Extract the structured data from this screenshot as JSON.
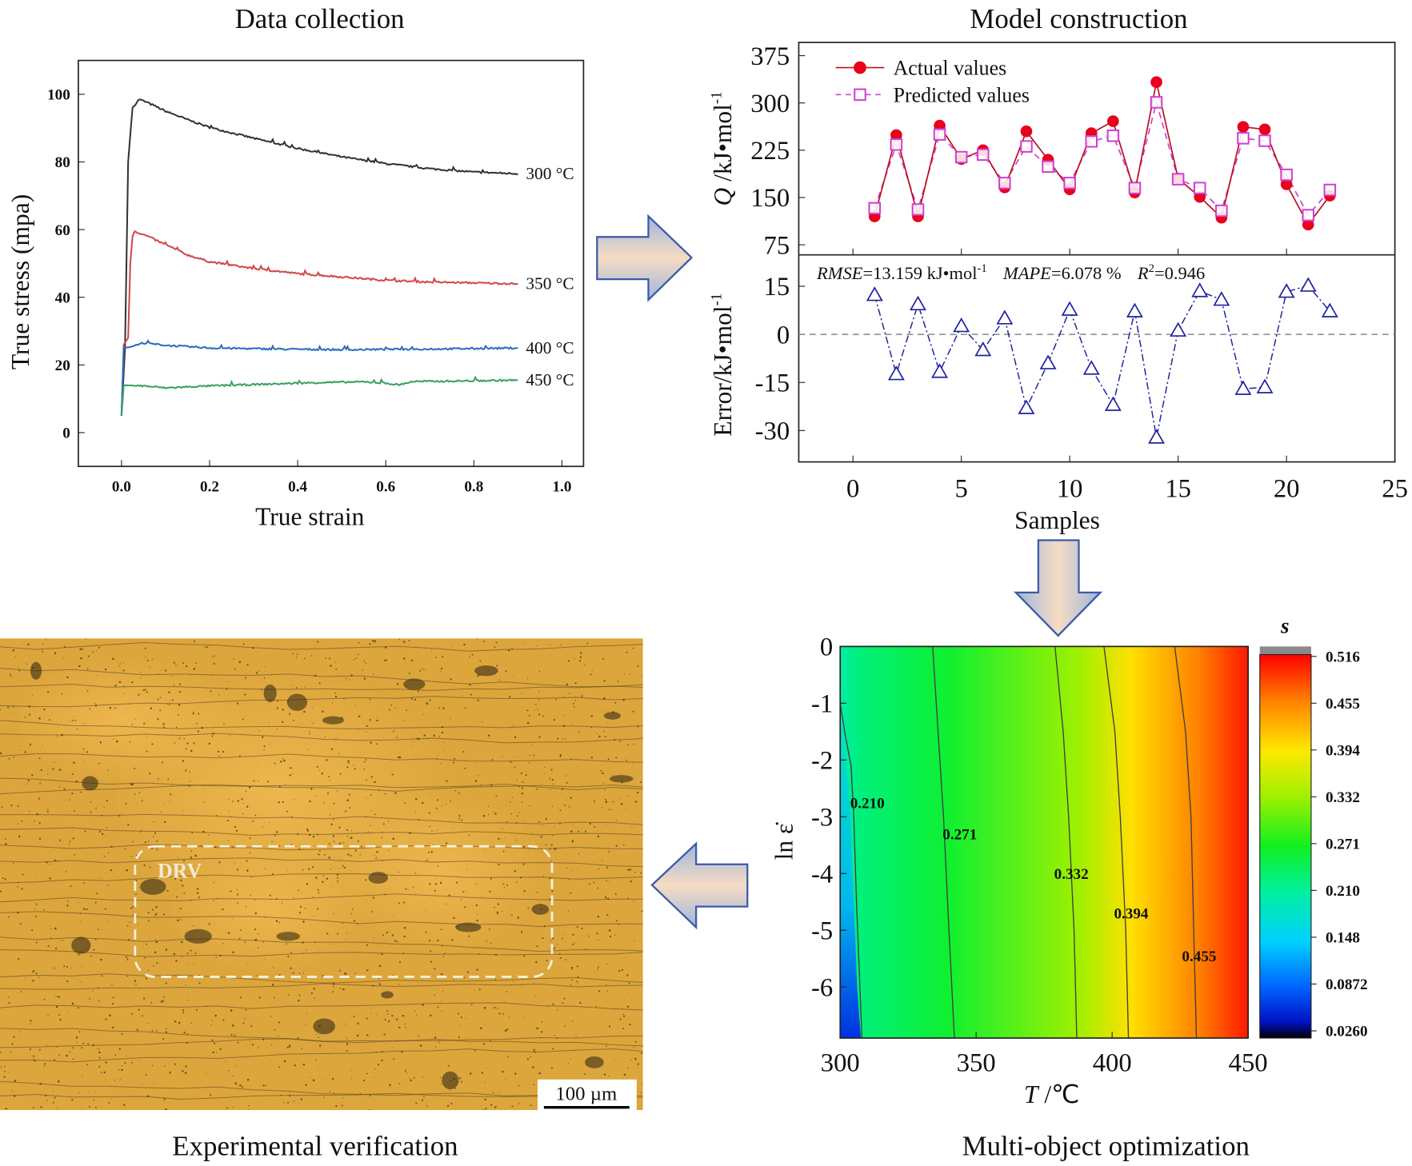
{
  "titles": {
    "data_collection": "Data collection",
    "model_construction": "Model construction",
    "experimental_verification": "Experimental verification",
    "multi_object_optimization": "Multi-object optimization"
  },
  "colors": {
    "arrow_stroke": "#3a5aa8",
    "actual": "#e8001c",
    "predicted": "#d040d0",
    "error": "#2020a0"
  },
  "chart_data": [
    {
      "id": "stress_strain",
      "type": "line",
      "xlabel": "True strain",
      "ylabel": "True stress (mpa)",
      "xlim": [
        -0.098,
        1.049
      ],
      "ylim": [
        -10,
        110
      ],
      "xticks": [
        "0.0",
        "0.2",
        "0.4",
        "0.6",
        "0.8",
        "1.0"
      ],
      "xtick_values": [
        0,
        0.2,
        0.4,
        0.6,
        0.8,
        1.0
      ],
      "yticks": [
        "0",
        "20",
        "40",
        "60",
        "80",
        "100"
      ],
      "ytick_values": [
        0,
        20,
        40,
        60,
        80,
        100
      ],
      "series": [
        {
          "name": "300 °C",
          "color": "#333333",
          "points": [
            [
              0,
              5
            ],
            [
              0.008,
              25
            ],
            [
              0.015,
              80
            ],
            [
              0.025,
              96
            ],
            [
              0.04,
              98.5
            ],
            [
              0.06,
              97.5
            ],
            [
              0.1,
              95
            ],
            [
              0.15,
              92.5
            ],
            [
              0.2,
              90.2
            ],
            [
              0.3,
              87
            ],
            [
              0.4,
              84
            ],
            [
              0.5,
              81.5
            ],
            [
              0.6,
              79.5
            ],
            [
              0.7,
              78
            ],
            [
              0.8,
              77
            ],
            [
              0.9,
              76.5
            ]
          ]
        },
        {
          "name": "350 °C",
          "color": "#d04848",
          "points": [
            [
              0,
              5
            ],
            [
              0.005,
              26
            ],
            [
              0.015,
              28
            ],
            [
              0.02,
              50
            ],
            [
              0.025,
              58
            ],
            [
              0.03,
              59.5
            ],
            [
              0.06,
              58
            ],
            [
              0.1,
              55.5
            ],
            [
              0.15,
              52.5
            ],
            [
              0.2,
              50.5
            ],
            [
              0.3,
              48.5
            ],
            [
              0.4,
              47
            ],
            [
              0.5,
              46
            ],
            [
              0.6,
              45
            ],
            [
              0.7,
              44.5
            ],
            [
              0.9,
              44
            ]
          ]
        },
        {
          "name": "400 °C",
          "color": "#2a6cc0",
          "points": [
            [
              0,
              5
            ],
            [
              0.005,
              25
            ],
            [
              0.02,
              25.3
            ],
            [
              0.05,
              26.5
            ],
            [
              0.1,
              25.8
            ],
            [
              0.2,
              25
            ],
            [
              0.35,
              24.7
            ],
            [
              0.5,
              24.5
            ],
            [
              0.7,
              24.7
            ],
            [
              0.9,
              25
            ]
          ]
        },
        {
          "name": "450 °C",
          "color": "#3aa060",
          "points": [
            [
              0,
              5
            ],
            [
              0.005,
              14
            ],
            [
              0.05,
              13.8
            ],
            [
              0.1,
              13.2
            ],
            [
              0.2,
              13.8
            ],
            [
              0.3,
              14.2
            ],
            [
              0.45,
              14.8
            ],
            [
              0.55,
              15
            ],
            [
              0.6,
              14.6
            ],
            [
              0.63,
              14.1
            ],
            [
              0.66,
              15.1
            ],
            [
              0.75,
              15.2
            ],
            [
              0.9,
              15.5
            ]
          ]
        }
      ]
    },
    {
      "id": "q_prediction",
      "type": "line",
      "ylabel_italic": "Q",
      "ylabel": " /kJ•mol",
      "ylabel_sup": "-1",
      "xlim": [
        -2.5,
        25
      ],
      "ylim": [
        59,
        396
      ],
      "yticks": [
        "75",
        "150",
        "225",
        "300",
        "375"
      ],
      "ytick_values": [
        75,
        150,
        225,
        300,
        375
      ],
      "x": [
        1,
        2,
        3,
        4,
        5,
        6,
        7,
        8,
        9,
        10,
        11,
        12,
        13,
        14,
        15,
        16,
        17,
        18,
        19,
        20,
        21,
        22
      ],
      "series": [
        {
          "name": "Actual values",
          "values": [
            120,
            249,
            120,
            264,
            211,
            225,
            166,
            255,
            210,
            163,
            252,
            271,
            158,
            333,
            180,
            151,
            118,
            262,
            258,
            171,
            107,
            153
          ]
        },
        {
          "name": "Predicted values",
          "values": [
            133,
            234,
            131,
            250,
            214,
            218,
            173,
            231,
            199,
            173,
            239,
            248,
            165,
            301,
            179,
            165,
            129,
            244,
            240,
            186,
            122,
            162
          ]
        }
      ]
    },
    {
      "id": "error",
      "type": "line",
      "ylabel": "Error/kJ•mol",
      "ylabel_sup": "-1",
      "xlabel": "Samples",
      "xlim": [
        -2.5,
        25
      ],
      "ylim": [
        -39.8,
        24.8
      ],
      "xticks": [
        "0",
        "5",
        "10",
        "15",
        "20",
        "25"
      ],
      "xtick_values": [
        0,
        5,
        10,
        15,
        20,
        25
      ],
      "yticks": [
        "-30",
        "-15",
        "0",
        "15"
      ],
      "ytick_values": [
        -30,
        -15,
        0,
        15
      ],
      "x": [
        1,
        2,
        3,
        4,
        5,
        6,
        7,
        8,
        9,
        10,
        11,
        12,
        13,
        14,
        15,
        16,
        17,
        18,
        19,
        20,
        21,
        22
      ],
      "values": [
        12.3,
        -12.4,
        9.4,
        -11.7,
        2.6,
        -4.9,
        5,
        -23,
        -9,
        7.7,
        -10.7,
        -22,
        7.2,
        -32.2,
        1.2,
        13.5,
        10.8,
        -17,
        -16.5,
        13.3,
        15.2,
        7.2
      ],
      "stats": {
        "rmse_label": "RMSE",
        "rmse_value": "=13.159 kJ•mol",
        "rmse_sup": "-1",
        "mape_label": "MAPE",
        "mape_value": "=6.078 %",
        "r2_label": "R",
        "r2_sup": "2",
        "r2_value": "=0.946"
      }
    },
    {
      "id": "processing_map",
      "type": "heatmap",
      "xlabel_italic": "T",
      "xlabel": " /℃",
      "ylabel": "ln ε̇",
      "xlim": [
        300,
        450
      ],
      "ylim": [
        -6.9,
        0
      ],
      "xticks": [
        "300",
        "350",
        "400",
        "450"
      ],
      "xtick_values": [
        300,
        350,
        400,
        450
      ],
      "yticks": [
        "0",
        "-1",
        "-2",
        "-3",
        "-4",
        "-5",
        "-6"
      ],
      "ytick_values": [
        0,
        -1,
        -2,
        -3,
        -4,
        -5,
        -6
      ],
      "colorbar_title": "s",
      "colorbar_ticks": [
        "0.516",
        "0.455",
        "0.394",
        "0.332",
        "0.271",
        "0.210",
        "0.148",
        "0.0872",
        "0.0260"
      ],
      "contours": [
        {
          "level": "0.210",
          "points": [
            [
              300,
              -1
            ],
            [
              302,
              -1.6
            ],
            [
              304,
              -2.1
            ],
            [
              305,
              -3
            ],
            [
              306,
              -4.5
            ],
            [
              308,
              -6.9
            ]
          ],
          "label_at": [
            310,
            -2.75
          ]
        },
        {
          "level": "0.271",
          "points": [
            [
              334,
              0
            ],
            [
              336,
              -1.5
            ],
            [
              338,
              -3
            ],
            [
              340,
              -5
            ],
            [
              342,
              -6.9
            ]
          ],
          "label_at": [
            344,
            -3.3
          ]
        },
        {
          "level": "0.332",
          "points": [
            [
              379,
              0
            ],
            [
              382,
              -1.5
            ],
            [
              384,
              -3
            ],
            [
              386,
              -5
            ],
            [
              387,
              -6.9
            ]
          ],
          "label_at": [
            385,
            -4
          ]
        },
        {
          "level": "0.394",
          "points": [
            [
              397,
              0
            ],
            [
              401,
              -1.5
            ],
            [
              403,
              -3
            ],
            [
              405,
              -5
            ],
            [
              406,
              -6.9
            ]
          ],
          "label_at": [
            407,
            -4.7
          ]
        },
        {
          "level": "0.455",
          "points": [
            [
              423,
              0
            ],
            [
              427,
              -1.5
            ],
            [
              429,
              -3
            ],
            [
              430,
              -5
            ],
            [
              431,
              -6.9
            ]
          ],
          "label_at": [
            432,
            -5.45
          ]
        }
      ]
    }
  ],
  "micrograph": {
    "region_label": "DRV",
    "scale_bar": "100 µm"
  }
}
